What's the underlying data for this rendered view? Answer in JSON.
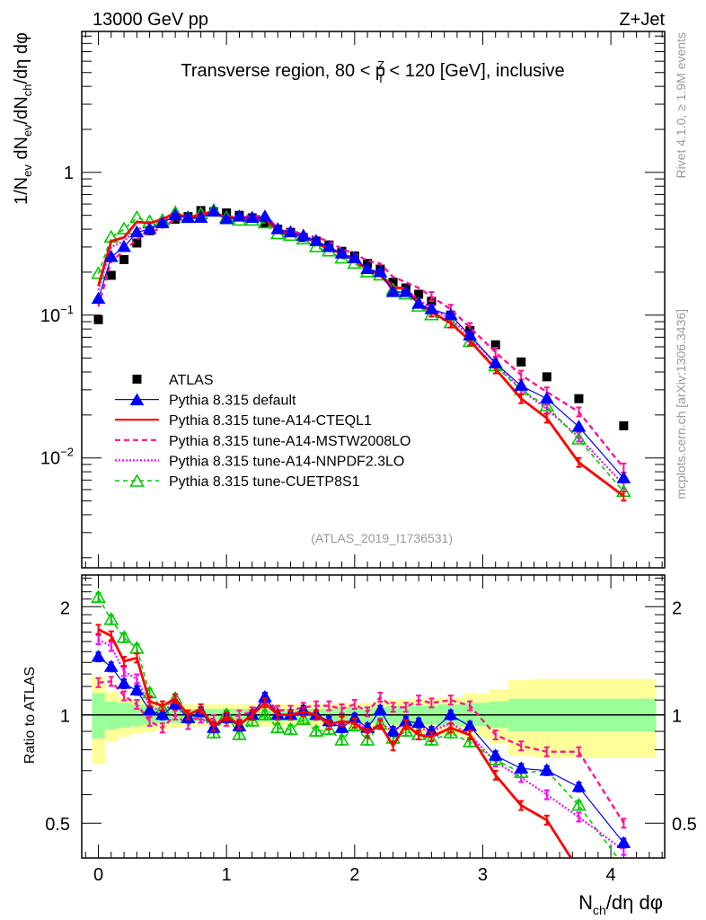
{
  "header": {
    "left_label": "13000 GeV pp",
    "right_label": "Z+Jet"
  },
  "side_labels": {
    "rivet": "Rivet 4.1.0, ≥ 1.9M events",
    "mcplots": "mcplots.cern.ch [arXiv:1306.3436]"
  },
  "chart_data": [
    {
      "type": "scatter",
      "panel": "main",
      "title": "Transverse region, 80 < p_T^Z < 120 [GeV], inclusive",
      "title_parts": {
        "pre": "Transverse region, 80 < p",
        "sup": "Z",
        "sub": "T",
        "post": " < 120 [GeV], inclusive"
      },
      "xlabel": "N_ch/dη dφ",
      "ylabel": "1/N_ev dN_ev/dN_ch/dη dφ",
      "ylabel_parts": [
        "1/N",
        "ev",
        " dN",
        "ev",
        "/dN",
        "ch",
        "/dη dφ"
      ],
      "yscale": "log",
      "xlim": [
        -0.13,
        4.42
      ],
      "ylim": [
        0.0017,
        9.7
      ],
      "ytick_labels": [
        {
          "value": 1,
          "label": "1"
        },
        {
          "value": 0.1,
          "label": "10",
          "exp": "−1"
        },
        {
          "value": 0.01,
          "label": "10",
          "exp": "−2"
        }
      ],
      "watermark": "(ATLAS_2019_I1736531)",
      "legend_position": "bottom-left",
      "series": [
        {
          "name": "ATLAS",
          "color": "#000000",
          "style": "data",
          "marker": "square",
          "x": [
            0.0,
            0.1,
            0.2,
            0.3,
            0.4,
            0.5,
            0.6,
            0.7,
            0.8,
            0.9,
            1.0,
            1.1,
            1.2,
            1.3,
            1.4,
            1.5,
            1.6,
            1.7,
            1.8,
            1.9,
            2.0,
            2.1,
            2.2,
            2.3,
            2.4,
            2.5,
            2.6,
            2.75,
            2.9,
            3.1,
            3.3,
            3.5,
            3.75,
            4.1
          ],
          "y": [
            0.093,
            0.19,
            0.245,
            0.32,
            0.39,
            0.44,
            0.47,
            0.49,
            0.54,
            0.53,
            0.52,
            0.5,
            0.48,
            0.44,
            0.4,
            0.38,
            0.35,
            0.33,
            0.31,
            0.28,
            0.26,
            0.23,
            0.21,
            0.17,
            0.155,
            0.14,
            0.125,
            0.1,
            0.078,
            0.062,
            0.047,
            0.037,
            0.026,
            0.0168
          ]
        },
        {
          "name": "Pythia 8.315 default",
          "color": "#0000ff",
          "style": "solid-thin",
          "marker": "triangle-filled",
          "x": [
            0.0,
            0.1,
            0.2,
            0.3,
            0.4,
            0.5,
            0.6,
            0.7,
            0.8,
            0.9,
            1.0,
            1.1,
            1.2,
            1.3,
            1.4,
            1.5,
            1.6,
            1.7,
            1.8,
            1.9,
            2.0,
            2.1,
            2.2,
            2.3,
            2.4,
            2.5,
            2.6,
            2.75,
            2.9,
            3.1,
            3.3,
            3.5,
            3.75,
            4.1
          ],
          "y": [
            0.13,
            0.255,
            0.3,
            0.38,
            0.4,
            0.44,
            0.5,
            0.48,
            0.48,
            0.53,
            0.47,
            0.49,
            0.48,
            0.49,
            0.4,
            0.38,
            0.36,
            0.33,
            0.3,
            0.27,
            0.25,
            0.21,
            0.2,
            0.145,
            0.145,
            0.12,
            0.11,
            0.1,
            0.072,
            0.046,
            0.032,
            0.026,
            0.0165,
            0.0072
          ]
        },
        {
          "name": "Pythia 8.315 tune-A14-CTEQL1",
          "color": "#ff0000",
          "style": "solid-thick",
          "marker": "none",
          "x": [
            0.0,
            0.1,
            0.2,
            0.3,
            0.4,
            0.5,
            0.6,
            0.7,
            0.8,
            0.9,
            1.0,
            1.1,
            1.2,
            1.3,
            1.4,
            1.5,
            1.6,
            1.7,
            1.8,
            1.9,
            2.0,
            2.1,
            2.2,
            2.3,
            2.4,
            2.5,
            2.6,
            2.75,
            2.9,
            3.1,
            3.3,
            3.5,
            3.75,
            4.1
          ],
          "y": [
            0.16,
            0.33,
            0.35,
            0.45,
            0.44,
            0.47,
            0.52,
            0.48,
            0.51,
            0.53,
            0.48,
            0.48,
            0.47,
            0.47,
            0.39,
            0.37,
            0.36,
            0.32,
            0.29,
            0.27,
            0.24,
            0.21,
            0.19,
            0.155,
            0.155,
            0.12,
            0.105,
            0.088,
            0.066,
            0.042,
            0.026,
            0.019,
            0.0093,
            0.0054
          ]
        },
        {
          "name": "Pythia 8.315 tune-A14-MSTW2008LO",
          "color": "#ff1493",
          "style": "dashed",
          "marker": "none",
          "x": [
            0.0,
            0.1,
            0.2,
            0.3,
            0.4,
            0.5,
            0.6,
            0.7,
            0.8,
            0.9,
            1.0,
            1.1,
            1.2,
            1.3,
            1.4,
            1.5,
            1.6,
            1.7,
            1.8,
            1.9,
            2.0,
            2.1,
            2.2,
            2.3,
            2.4,
            2.5,
            2.6,
            2.75,
            2.9,
            3.1,
            3.3,
            3.5,
            3.75,
            4.1
          ],
          "y": [
            0.115,
            0.24,
            0.28,
            0.34,
            0.38,
            0.41,
            0.47,
            0.46,
            0.5,
            0.52,
            0.48,
            0.5,
            0.49,
            0.5,
            0.41,
            0.39,
            0.37,
            0.35,
            0.33,
            0.29,
            0.27,
            0.24,
            0.23,
            0.185,
            0.17,
            0.155,
            0.135,
            0.11,
            0.082,
            0.055,
            0.038,
            0.029,
            0.021,
            0.0085
          ]
        },
        {
          "name": "Pythia 8.315 tune-A14-NNPDF2.3LO",
          "color": "#ff00ff",
          "style": "dotted",
          "marker": "none",
          "x": [
            0.0,
            0.1,
            0.2,
            0.3,
            0.4,
            0.5,
            0.6,
            0.7,
            0.8,
            0.9,
            1.0,
            1.1,
            1.2,
            1.3,
            1.4,
            1.5,
            1.6,
            1.7,
            1.8,
            1.9,
            2.0,
            2.1,
            2.2,
            2.3,
            2.4,
            2.5,
            2.6,
            2.75,
            2.9,
            3.1,
            3.3,
            3.5,
            3.75,
            4.1
          ],
          "y": [
            0.15,
            0.3,
            0.33,
            0.4,
            0.42,
            0.45,
            0.51,
            0.48,
            0.49,
            0.53,
            0.47,
            0.49,
            0.48,
            0.49,
            0.4,
            0.38,
            0.36,
            0.33,
            0.3,
            0.27,
            0.25,
            0.21,
            0.2,
            0.16,
            0.15,
            0.13,
            0.11,
            0.095,
            0.07,
            0.046,
            0.03,
            0.022,
            0.014,
            0.0065
          ]
        },
        {
          "name": "Pythia 8.315 tune-CUETP8S1",
          "color": "#00cc00",
          "style": "dashed-green",
          "marker": "triangle-open",
          "x": [
            0.0,
            0.1,
            0.2,
            0.3,
            0.4,
            0.5,
            0.6,
            0.7,
            0.8,
            0.9,
            1.0,
            1.1,
            1.2,
            1.3,
            1.4,
            1.5,
            1.6,
            1.7,
            1.8,
            1.9,
            2.0,
            2.1,
            2.2,
            2.3,
            2.4,
            2.5,
            2.6,
            2.75,
            2.9,
            3.1,
            3.3,
            3.5,
            3.75,
            4.1
          ],
          "y": [
            0.195,
            0.35,
            0.4,
            0.48,
            0.45,
            0.46,
            0.52,
            0.48,
            0.51,
            0.54,
            0.48,
            0.46,
            0.46,
            0.44,
            0.37,
            0.36,
            0.34,
            0.3,
            0.28,
            0.25,
            0.23,
            0.2,
            0.19,
            0.15,
            0.14,
            0.115,
            0.1,
            0.088,
            0.065,
            0.044,
            0.03,
            0.023,
            0.0135,
            0.0058
          ]
        }
      ]
    },
    {
      "type": "line",
      "panel": "ratio",
      "ylabel": "Ratio to ATLAS",
      "xlabel": "N_ch/dη dφ",
      "xlabel_parts": [
        "N",
        "ch",
        "/dη dφ"
      ],
      "yscale": "log",
      "xlim": [
        -0.13,
        4.42
      ],
      "ylim": [
        0.4,
        2.45
      ],
      "xtick_labels": [
        "0",
        "1",
        "2",
        "3",
        "4"
      ],
      "xticks": [
        0,
        1,
        2,
        3,
        4
      ],
      "ytick_labels": [
        {
          "value": 2,
          "label": "2"
        },
        {
          "value": 1,
          "label": "1"
        },
        {
          "value": 0.5,
          "label": "0.5"
        }
      ],
      "reference_line": 1,
      "bands": {
        "edges": [
          -0.05,
          0.05,
          0.15,
          0.25,
          0.35,
          0.45,
          0.55,
          0.65,
          0.75,
          0.85,
          0.95,
          1.05,
          1.15,
          1.25,
          1.35,
          1.45,
          1.55,
          1.65,
          1.75,
          1.85,
          1.95,
          2.05,
          2.15,
          2.25,
          2.35,
          2.45,
          2.55,
          2.65,
          2.85,
          3.05,
          3.2,
          3.4,
          3.6,
          3.9,
          4.35
        ],
        "inner_color": "#99ff99",
        "outer_color": "#ffff99",
        "inner_lo": [
          0.86,
          0.91,
          0.92,
          0.93,
          0.94,
          0.95,
          0.95,
          0.96,
          0.96,
          0.96,
          0.96,
          0.96,
          0.96,
          0.96,
          0.96,
          0.96,
          0.96,
          0.96,
          0.96,
          0.95,
          0.95,
          0.95,
          0.95,
          0.94,
          0.94,
          0.94,
          0.94,
          0.93,
          0.93,
          0.92,
          0.9,
          0.9,
          0.9,
          0.9
        ],
        "inner_hi": [
          1.15,
          1.09,
          1.08,
          1.07,
          1.06,
          1.05,
          1.05,
          1.04,
          1.04,
          1.04,
          1.04,
          1.04,
          1.04,
          1.04,
          1.04,
          1.04,
          1.04,
          1.04,
          1.04,
          1.05,
          1.05,
          1.05,
          1.05,
          1.06,
          1.06,
          1.06,
          1.06,
          1.07,
          1.08,
          1.09,
          1.11,
          1.11,
          1.11,
          1.11
        ],
        "outer_lo": [
          0.73,
          0.84,
          0.87,
          0.89,
          0.9,
          0.91,
          0.92,
          0.93,
          0.93,
          0.93,
          0.93,
          0.93,
          0.93,
          0.93,
          0.93,
          0.93,
          0.93,
          0.93,
          0.93,
          0.92,
          0.92,
          0.92,
          0.91,
          0.9,
          0.9,
          0.89,
          0.89,
          0.88,
          0.86,
          0.83,
          0.77,
          0.76,
          0.76,
          0.76
        ],
        "outer_hi": [
          1.28,
          1.16,
          1.12,
          1.1,
          1.09,
          1.08,
          1.08,
          1.07,
          1.07,
          1.07,
          1.07,
          1.07,
          1.07,
          1.07,
          1.07,
          1.07,
          1.07,
          1.07,
          1.07,
          1.08,
          1.08,
          1.08,
          1.09,
          1.1,
          1.1,
          1.11,
          1.11,
          1.12,
          1.15,
          1.18,
          1.25,
          1.26,
          1.26,
          1.26
        ]
      },
      "series": [
        {
          "name": "Pythia 8.315 default",
          "color": "#0000ff",
          "y": [
            1.45,
            1.36,
            1.22,
            1.17,
            1.03,
            1.0,
            1.07,
            0.98,
            1.02,
            0.92,
            0.98,
            0.93,
            1.0,
            1.12,
            1.0,
            1.0,
            1.03,
            1.0,
            0.96,
            0.92,
            0.98,
            0.92,
            1.03,
            0.9,
            0.96,
            0.95,
            0.9,
            1.0,
            0.93,
            0.77,
            0.71,
            0.7,
            0.63,
            0.44
          ]
        },
        {
          "name": "Pythia 8.315 tune-A14-CTEQL1",
          "color": "#ff0000",
          "y": [
            1.73,
            1.66,
            1.41,
            1.44,
            1.09,
            1.06,
            1.11,
            1.0,
            1.04,
            0.93,
            0.99,
            0.94,
            1.0,
            1.08,
            1.0,
            1.0,
            1.02,
            1.0,
            0.94,
            0.96,
            0.95,
            0.89,
            0.94,
            0.82,
            0.94,
            0.88,
            0.87,
            0.92,
            0.88,
            0.68,
            0.56,
            0.51,
            0.37,
            0.32
          ]
        },
        {
          "name": "Pythia 8.315 tune-A14-MSTW2008LO",
          "color": "#ff1493",
          "y": [
            1.23,
            1.24,
            1.13,
            1.07,
            0.96,
            0.92,
            1.0,
            0.94,
            1.0,
            0.97,
            0.96,
            1.0,
            1.02,
            1.11,
            1.03,
            1.03,
            1.05,
            1.06,
            1.06,
            1.04,
            1.07,
            1.02,
            1.12,
            1.05,
            1.05,
            1.1,
            1.08,
            1.1,
            1.06,
            0.88,
            0.82,
            0.79,
            0.79,
            0.5
          ]
        },
        {
          "name": "Pythia 8.315 tune-A14-NNPDF2.3LO",
          "color": "#ff00ff",
          "y": [
            1.62,
            1.55,
            1.32,
            1.26,
            1.06,
            1.02,
            1.09,
            0.98,
            0.98,
            0.93,
            0.98,
            0.94,
            1.0,
            1.12,
            1.0,
            1.0,
            1.03,
            1.0,
            0.96,
            0.93,
            0.97,
            0.9,
            0.95,
            0.9,
            0.95,
            0.92,
            0.9,
            0.95,
            0.88,
            0.74,
            0.67,
            0.6,
            0.52,
            0.42
          ]
        },
        {
          "name": "Pythia 8.315 tune-CUETP8S1",
          "color": "#00cc00",
          "y": [
            2.12,
            1.84,
            1.64,
            1.53,
            1.15,
            1.04,
            1.11,
            0.98,
            1.02,
            0.89,
            1.0,
            0.88,
            0.96,
            1.0,
            0.92,
            0.91,
            0.97,
            0.9,
            0.91,
            0.85,
            0.93,
            0.85,
            0.94,
            0.86,
            0.9,
            0.88,
            0.85,
            0.89,
            0.84,
            0.75,
            0.69,
            0.7,
            0.56,
            0.38
          ]
        }
      ],
      "x": [
        0.0,
        0.1,
        0.2,
        0.3,
        0.4,
        0.5,
        0.6,
        0.7,
        0.8,
        0.9,
        1.0,
        1.1,
        1.2,
        1.3,
        1.4,
        1.5,
        1.6,
        1.7,
        1.8,
        1.9,
        2.0,
        2.1,
        2.2,
        2.3,
        2.4,
        2.5,
        2.6,
        2.75,
        2.9,
        3.1,
        3.3,
        3.5,
        3.75,
        4.1
      ]
    }
  ]
}
